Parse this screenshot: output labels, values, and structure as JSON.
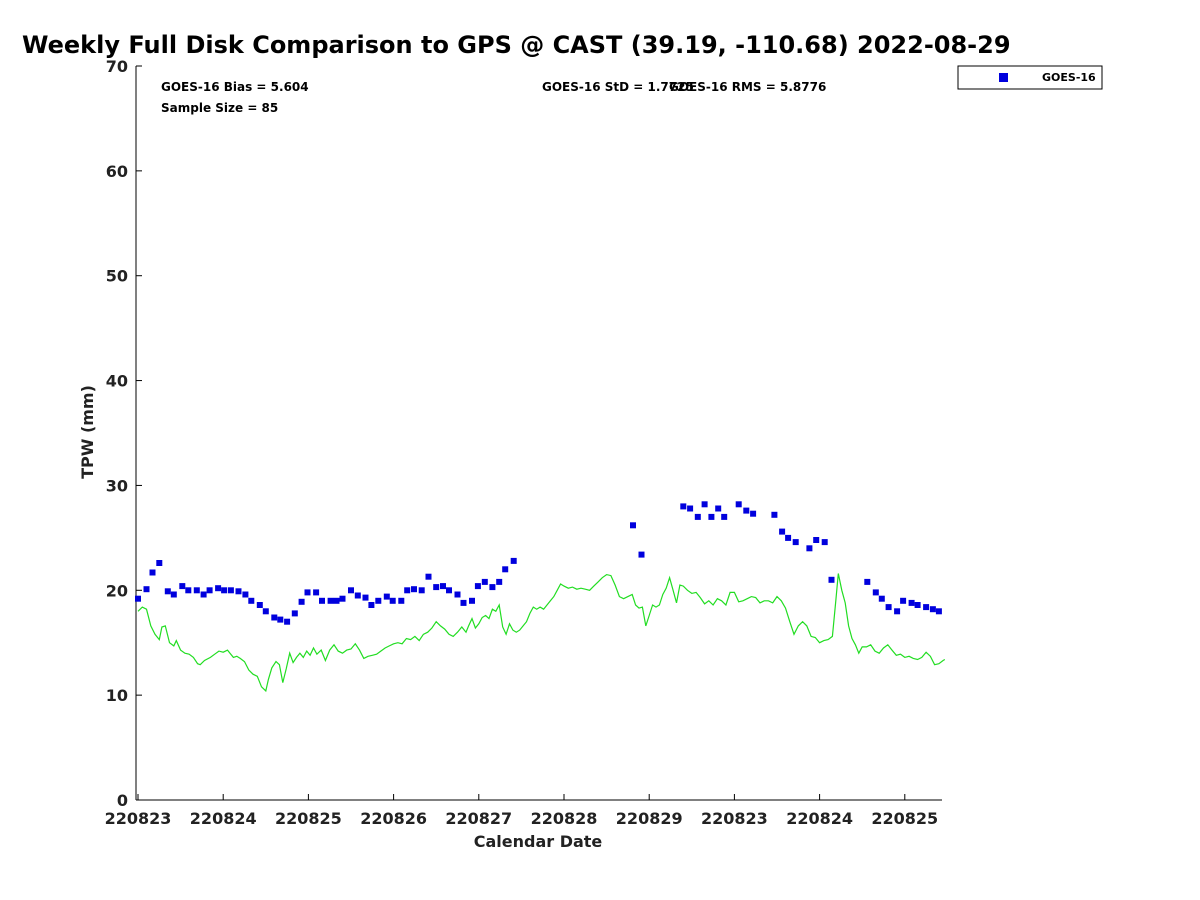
{
  "chart_data": {
    "type": "scatter",
    "title": "Weekly Full Disk Comparison to GPS @ CAST (39.19, -110.68) 2022-08-29",
    "xlabel": "Calendar Date",
    "ylabel": "TPW (mm)",
    "ylim": [
      0,
      70
    ],
    "yticks": [
      0,
      10,
      20,
      30,
      40,
      50,
      60,
      70
    ],
    "xlim": [
      0,
      9.47
    ],
    "xtick_labels": [
      "220823",
      "220824",
      "220825",
      "220826",
      "220827",
      "220828",
      "220829",
      "220823",
      "220824",
      "220825"
    ],
    "grid": false,
    "legend_position": "top-right",
    "colors": {
      "goes": "#0000dd",
      "gps": "#22dd22",
      "axis": "#000000"
    },
    "annotations": {
      "bias": "GOES-16 Bias = 5.604",
      "sample_size": "Sample Size = 85",
      "std": "GOES-16 StD = 1.7725",
      "rms": "GOES-16 RMS = 5.8776"
    },
    "series": [
      {
        "name": "GOES-16",
        "style": "marker",
        "points": [
          [
            0.0,
            19.2
          ],
          [
            0.1,
            20.1
          ],
          [
            0.17,
            21.7
          ],
          [
            0.25,
            22.6
          ],
          [
            0.35,
            19.9
          ],
          [
            0.42,
            19.6
          ],
          [
            0.52,
            20.4
          ],
          [
            0.59,
            20.0
          ],
          [
            0.69,
            20.0
          ],
          [
            0.77,
            19.6
          ],
          [
            0.84,
            20.0
          ],
          [
            0.94,
            20.2
          ],
          [
            1.01,
            20.0
          ],
          [
            1.09,
            20.0
          ],
          [
            1.18,
            19.9
          ],
          [
            1.26,
            19.6
          ],
          [
            1.33,
            19.0
          ],
          [
            1.43,
            18.6
          ],
          [
            1.5,
            18.0
          ],
          [
            1.6,
            17.4
          ],
          [
            1.67,
            17.2
          ],
          [
            1.75,
            17.0
          ],
          [
            1.84,
            17.8
          ],
          [
            1.92,
            18.9
          ],
          [
            1.99,
            19.8
          ],
          [
            2.09,
            19.8
          ],
          [
            2.16,
            19.0
          ],
          [
            2.26,
            19.0
          ],
          [
            2.33,
            19.0
          ],
          [
            2.4,
            19.2
          ],
          [
            2.5,
            20.0
          ],
          [
            2.58,
            19.5
          ],
          [
            2.67,
            19.3
          ],
          [
            2.74,
            18.6
          ],
          [
            2.82,
            19.0
          ],
          [
            2.92,
            19.4
          ],
          [
            2.99,
            19.0
          ],
          [
            3.09,
            19.0
          ],
          [
            3.16,
            20.0
          ],
          [
            3.24,
            20.1
          ],
          [
            3.33,
            20.0
          ],
          [
            3.41,
            21.3
          ],
          [
            3.5,
            20.3
          ],
          [
            3.58,
            20.4
          ],
          [
            3.65,
            20.0
          ],
          [
            3.75,
            19.6
          ],
          [
            3.82,
            18.8
          ],
          [
            3.92,
            19.0
          ],
          [
            3.99,
            20.4
          ],
          [
            4.07,
            20.8
          ],
          [
            4.16,
            20.3
          ],
          [
            4.24,
            20.8
          ],
          [
            4.31,
            22.0
          ],
          [
            4.41,
            22.8
          ],
          [
            5.81,
            26.2
          ],
          [
            5.91,
            23.4
          ],
          [
            6.4,
            28.0
          ],
          [
            6.48,
            27.8
          ],
          [
            6.57,
            27.0
          ],
          [
            6.65,
            28.2
          ],
          [
            6.73,
            27.0
          ],
          [
            6.81,
            27.8
          ],
          [
            6.88,
            27.0
          ],
          [
            7.05,
            28.2
          ],
          [
            7.14,
            27.6
          ],
          [
            7.22,
            27.3
          ],
          [
            7.47,
            27.2
          ],
          [
            7.56,
            25.6
          ],
          [
            7.63,
            25.0
          ],
          [
            7.72,
            24.6
          ],
          [
            7.88,
            24.0
          ],
          [
            7.96,
            24.8
          ],
          [
            8.06,
            24.6
          ],
          [
            8.14,
            21.0
          ],
          [
            8.56,
            20.8
          ],
          [
            8.66,
            19.8
          ],
          [
            8.73,
            19.2
          ],
          [
            8.81,
            18.4
          ],
          [
            8.91,
            18.0
          ],
          [
            8.98,
            19.0
          ],
          [
            9.08,
            18.8
          ],
          [
            9.15,
            18.6
          ],
          [
            9.25,
            18.4
          ],
          [
            9.33,
            18.2
          ],
          [
            9.4,
            18.0
          ]
        ]
      },
      {
        "style": "line",
        "points": [
          [
            0.0,
            18.0
          ],
          [
            0.05,
            18.4
          ],
          [
            0.1,
            18.2
          ],
          [
            0.15,
            16.6
          ],
          [
            0.2,
            15.8
          ],
          [
            0.25,
            15.3
          ],
          [
            0.28,
            16.5
          ],
          [
            0.32,
            16.6
          ],
          [
            0.37,
            15.0
          ],
          [
            0.42,
            14.7
          ],
          [
            0.45,
            15.2
          ],
          [
            0.5,
            14.3
          ],
          [
            0.55,
            14.0
          ],
          [
            0.6,
            13.9
          ],
          [
            0.65,
            13.6
          ],
          [
            0.7,
            13.0
          ],
          [
            0.73,
            12.9
          ],
          [
            0.78,
            13.3
          ],
          [
            0.85,
            13.6
          ],
          [
            0.9,
            13.9
          ],
          [
            0.95,
            14.2
          ],
          [
            1.0,
            14.1
          ],
          [
            1.05,
            14.3
          ],
          [
            1.08,
            14.0
          ],
          [
            1.12,
            13.6
          ],
          [
            1.16,
            13.7
          ],
          [
            1.2,
            13.5
          ],
          [
            1.25,
            13.2
          ],
          [
            1.3,
            12.4
          ],
          [
            1.35,
            12.0
          ],
          [
            1.4,
            11.8
          ],
          [
            1.45,
            10.8
          ],
          [
            1.5,
            10.4
          ],
          [
            1.53,
            11.5
          ],
          [
            1.57,
            12.6
          ],
          [
            1.62,
            13.2
          ],
          [
            1.66,
            12.9
          ],
          [
            1.7,
            11.2
          ],
          [
            1.74,
            12.5
          ],
          [
            1.78,
            14.0
          ],
          [
            1.82,
            13.1
          ],
          [
            1.86,
            13.6
          ],
          [
            1.9,
            14.0
          ],
          [
            1.94,
            13.6
          ],
          [
            1.98,
            14.2
          ],
          [
            2.02,
            13.8
          ],
          [
            2.06,
            14.5
          ],
          [
            2.1,
            13.9
          ],
          [
            2.15,
            14.3
          ],
          [
            2.2,
            13.3
          ],
          [
            2.25,
            14.3
          ],
          [
            2.3,
            14.8
          ],
          [
            2.35,
            14.2
          ],
          [
            2.4,
            14.0
          ],
          [
            2.45,
            14.3
          ],
          [
            2.5,
            14.4
          ],
          [
            2.55,
            14.9
          ],
          [
            2.6,
            14.3
          ],
          [
            2.65,
            13.5
          ],
          [
            2.7,
            13.7
          ],
          [
            2.75,
            13.8
          ],
          [
            2.8,
            13.9
          ],
          [
            2.85,
            14.2
          ],
          [
            2.9,
            14.5
          ],
          [
            2.95,
            14.7
          ],
          [
            3.0,
            14.9
          ],
          [
            3.05,
            15.0
          ],
          [
            3.1,
            14.9
          ],
          [
            3.15,
            15.4
          ],
          [
            3.2,
            15.3
          ],
          [
            3.25,
            15.6
          ],
          [
            3.3,
            15.2
          ],
          [
            3.35,
            15.8
          ],
          [
            3.4,
            16.0
          ],
          [
            3.45,
            16.4
          ],
          [
            3.5,
            17.0
          ],
          [
            3.55,
            16.6
          ],
          [
            3.6,
            16.3
          ],
          [
            3.65,
            15.8
          ],
          [
            3.7,
            15.6
          ],
          [
            3.75,
            16.0
          ],
          [
            3.8,
            16.5
          ],
          [
            3.85,
            16.0
          ],
          [
            3.88,
            16.6
          ],
          [
            3.92,
            17.3
          ],
          [
            3.96,
            16.4
          ],
          [
            4.0,
            16.8
          ],
          [
            4.04,
            17.4
          ],
          [
            4.08,
            17.6
          ],
          [
            4.12,
            17.3
          ],
          [
            4.16,
            18.2
          ],
          [
            4.2,
            18.0
          ],
          [
            4.24,
            18.6
          ],
          [
            4.28,
            16.5
          ],
          [
            4.32,
            15.8
          ],
          [
            4.36,
            16.8
          ],
          [
            4.4,
            16.2
          ],
          [
            4.44,
            16.0
          ],
          [
            4.48,
            16.2
          ],
          [
            4.52,
            16.6
          ],
          [
            4.56,
            17.0
          ],
          [
            4.6,
            17.8
          ],
          [
            4.64,
            18.4
          ],
          [
            4.68,
            18.2
          ],
          [
            4.72,
            18.4
          ],
          [
            4.76,
            18.2
          ],
          [
            4.8,
            18.6
          ],
          [
            4.84,
            19.0
          ],
          [
            4.88,
            19.4
          ],
          [
            4.92,
            20.0
          ],
          [
            4.96,
            20.6
          ],
          [
            5.0,
            20.4
          ],
          [
            5.05,
            20.2
          ],
          [
            5.1,
            20.3
          ],
          [
            5.15,
            20.1
          ],
          [
            5.2,
            20.2
          ],
          [
            5.25,
            20.1
          ],
          [
            5.3,
            20.0
          ],
          [
            5.35,
            20.4
          ],
          [
            5.4,
            20.8
          ],
          [
            5.45,
            21.2
          ],
          [
            5.5,
            21.5
          ],
          [
            5.55,
            21.4
          ],
          [
            5.6,
            20.5
          ],
          [
            5.65,
            19.4
          ],
          [
            5.7,
            19.2
          ],
          [
            5.75,
            19.4
          ],
          [
            5.8,
            19.6
          ],
          [
            5.84,
            18.6
          ],
          [
            5.88,
            18.3
          ],
          [
            5.92,
            18.4
          ],
          [
            5.96,
            16.6
          ],
          [
            6.0,
            17.6
          ],
          [
            6.04,
            18.6
          ],
          [
            6.08,
            18.4
          ],
          [
            6.12,
            18.6
          ],
          [
            6.16,
            19.6
          ],
          [
            6.2,
            20.2
          ],
          [
            6.24,
            21.2
          ],
          [
            6.28,
            20.0
          ],
          [
            6.32,
            18.8
          ],
          [
            6.36,
            20.5
          ],
          [
            6.4,
            20.4
          ],
          [
            6.45,
            20.0
          ],
          [
            6.5,
            19.7
          ],
          [
            6.55,
            19.8
          ],
          [
            6.6,
            19.3
          ],
          [
            6.65,
            18.7
          ],
          [
            6.7,
            19.0
          ],
          [
            6.75,
            18.6
          ],
          [
            6.8,
            19.2
          ],
          [
            6.85,
            19.0
          ],
          [
            6.9,
            18.6
          ],
          [
            6.95,
            19.8
          ],
          [
            7.0,
            19.8
          ],
          [
            7.05,
            18.9
          ],
          [
            7.1,
            19.0
          ],
          [
            7.15,
            19.2
          ],
          [
            7.2,
            19.4
          ],
          [
            7.25,
            19.3
          ],
          [
            7.3,
            18.8
          ],
          [
            7.35,
            19.0
          ],
          [
            7.4,
            19.0
          ],
          [
            7.45,
            18.8
          ],
          [
            7.5,
            19.4
          ],
          [
            7.55,
            19.0
          ],
          [
            7.6,
            18.3
          ],
          [
            7.65,
            17.0
          ],
          [
            7.7,
            15.8
          ],
          [
            7.75,
            16.6
          ],
          [
            7.8,
            17.0
          ],
          [
            7.85,
            16.6
          ],
          [
            7.9,
            15.6
          ],
          [
            7.95,
            15.5
          ],
          [
            8.0,
            15.0
          ],
          [
            8.05,
            15.2
          ],
          [
            8.1,
            15.3
          ],
          [
            8.15,
            15.6
          ],
          [
            8.19,
            19.0
          ],
          [
            8.22,
            21.6
          ],
          [
            8.26,
            20.0
          ],
          [
            8.3,
            18.8
          ],
          [
            8.34,
            16.6
          ],
          [
            8.38,
            15.4
          ],
          [
            8.42,
            14.8
          ],
          [
            8.46,
            14.0
          ],
          [
            8.5,
            14.6
          ],
          [
            8.55,
            14.6
          ],
          [
            8.6,
            14.8
          ],
          [
            8.65,
            14.2
          ],
          [
            8.7,
            14.0
          ],
          [
            8.75,
            14.5
          ],
          [
            8.8,
            14.8
          ],
          [
            8.85,
            14.3
          ],
          [
            8.9,
            13.8
          ],
          [
            8.95,
            13.9
          ],
          [
            9.0,
            13.6
          ],
          [
            9.05,
            13.7
          ],
          [
            9.1,
            13.5
          ],
          [
            9.15,
            13.4
          ],
          [
            9.2,
            13.6
          ],
          [
            9.25,
            14.1
          ],
          [
            9.3,
            13.7
          ],
          [
            9.35,
            12.9
          ],
          [
            9.4,
            13.0
          ],
          [
            9.45,
            13.3
          ],
          [
            9.47,
            13.4
          ]
        ]
      }
    ]
  }
}
